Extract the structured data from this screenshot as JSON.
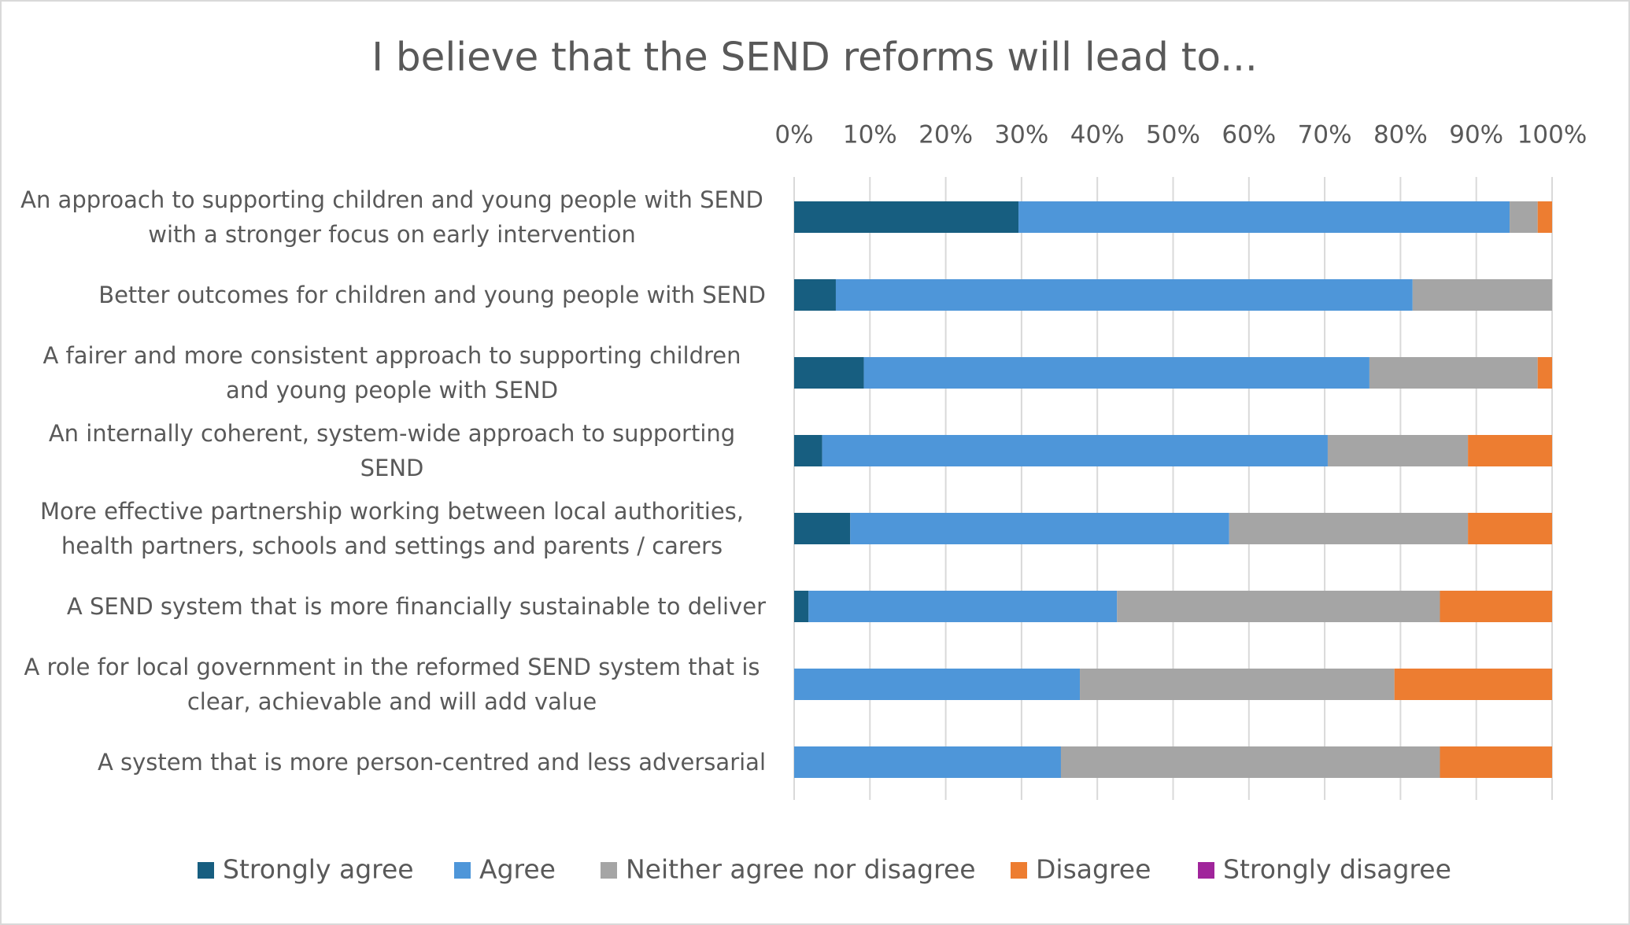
{
  "chart_data": {
    "type": "stacked-bar-horizontal",
    "title": "I believe that the SEND reforms will lead to...",
    "categories": [
      "An approach to supporting children and young people with SEND with a stronger focus on early intervention",
      "Better outcomes for children and young people with SEND",
      "A fairer and more consistent approach to supporting children and young people with SEND",
      "An internally coherent, system-wide approach to supporting SEND",
      "More effective partnership working between local authorities, health partners, schools and settings and parents / carers",
      "A SEND system that is more financially sustainable to deliver",
      "A role for local government in the reformed SEND system that is clear, achievable and will add value",
      "A system that is more person-centred and less adversarial"
    ],
    "series": [
      {
        "name": "Strongly agree",
        "color": "#175e80",
        "values": [
          29.6,
          5.5,
          9.2,
          3.7,
          7.4,
          1.9,
          0,
          0
        ]
      },
      {
        "name": "Agree",
        "color": "#4e96d9",
        "values": [
          64.8,
          76.1,
          66.7,
          66.7,
          50.0,
          40.7,
          37.7,
          35.2
        ]
      },
      {
        "name": "Neither agree nor disagree",
        "color": "#a5a5a5",
        "values": [
          3.7,
          18.4,
          22.2,
          18.5,
          31.5,
          42.6,
          41.5,
          50.0
        ]
      },
      {
        "name": "Disagree",
        "color": "#ed7d31",
        "values": [
          1.9,
          0,
          1.9,
          11.1,
          11.1,
          14.8,
          20.8,
          14.8
        ]
      },
      {
        "name": "Strongly disagree",
        "color": "#a0259b",
        "values": [
          0,
          0,
          0,
          0,
          0,
          0,
          0,
          0
        ]
      }
    ],
    "xlim": [
      0,
      100
    ],
    "xticks": [
      {
        "value": 0,
        "label": "0%"
      },
      {
        "value": 10,
        "label": "10%"
      },
      {
        "value": 20,
        "label": "20%"
      },
      {
        "value": 30,
        "label": "30%"
      },
      {
        "value": 40,
        "label": "40%"
      },
      {
        "value": 50,
        "label": "50%"
      },
      {
        "value": 60,
        "label": "60%"
      },
      {
        "value": 70,
        "label": "70%"
      },
      {
        "value": 80,
        "label": "80%"
      },
      {
        "value": 90,
        "label": "90%"
      },
      {
        "value": 100,
        "label": "100%"
      }
    ],
    "grid": true,
    "legend": "bottom"
  }
}
